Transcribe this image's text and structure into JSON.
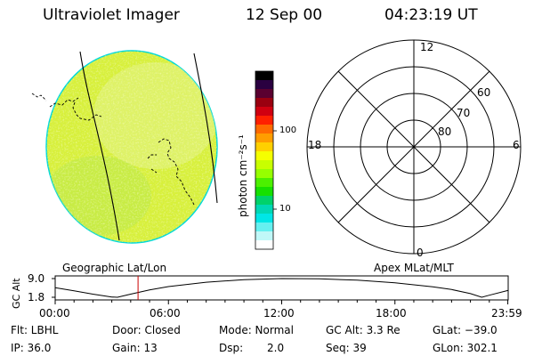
{
  "header": {
    "title": "Ultraviolet Imager",
    "date": "12 Sep 00",
    "time": "04:23:19 UT"
  },
  "colorbar": {
    "unit_label": "photon cm⁻²s⁻¹",
    "ticks": [
      "100",
      "10"
    ],
    "colors": [
      "#000000",
      "#2a0040",
      "#5a0030",
      "#9a0010",
      "#d00010",
      "#ff2000",
      "#ff6a00",
      "#ff9d00",
      "#ffd000",
      "#f5ff00",
      "#c8ff00",
      "#96ff00",
      "#4cf000",
      "#16e000",
      "#00d26a",
      "#00d8b4",
      "#00e6e6",
      "#66f0f0",
      "#c0f8f8",
      "#ffffff"
    ]
  },
  "polar_plot": {
    "labels": {
      "top": "12",
      "bottom": "0",
      "left": "18",
      "right": "6",
      "lat60": "60",
      "lat70": "70",
      "lat80": "80"
    }
  },
  "image_panel": {
    "disk_colors": [
      "#d8f03a",
      "#e6f48a",
      "#b6e650",
      "#cfe85a"
    ],
    "edge_color": "#00d8d8"
  },
  "timeline": {
    "left_title": "Geographic Lat/Lon",
    "right_title": "Apex MLat/MLT",
    "ylabel": "GC Alt",
    "yticks": [
      "9.0",
      "1.8"
    ],
    "xticks": [
      "00:00",
      "06:00",
      "12:00",
      "18:00",
      "23:59"
    ],
    "marker_color": "#cc0000",
    "chart_data": {
      "type": "line",
      "x_unit": "UT hours",
      "xlim": [
        0,
        24
      ],
      "ylim": [
        1.8,
        9.0
      ],
      "series": [
        {
          "x": [
            0,
            1,
            2,
            3,
            3.3,
            4,
            5,
            6,
            8,
            10,
            12,
            14,
            16,
            18,
            20,
            21,
            22,
            22.6,
            23,
            23.98
          ],
          "values": [
            5.5,
            4.3,
            3.0,
            1.9,
            1.8,
            3.0,
            4.6,
            5.9,
            7.6,
            8.6,
            9.0,
            8.9,
            8.4,
            7.4,
            5.8,
            4.8,
            3.2,
            1.8,
            2.6,
            4.4
          ]
        }
      ],
      "marker_x": 4.39
    }
  },
  "info": {
    "row1": {
      "flt": "Flt: LBHL",
      "door": "Door: Closed",
      "mode": "Mode: Normal",
      "gc_alt": "GC Alt: 3.3 Re",
      "glat": "GLat: −39.0"
    },
    "row2": {
      "ip": "IP: 36.0",
      "gain": "Gain: 13",
      "dsp_label": "Dsp:",
      "dsp_value": "2.0",
      "seq": "Seq: 39",
      "glon": "GLon: 302.1"
    }
  }
}
